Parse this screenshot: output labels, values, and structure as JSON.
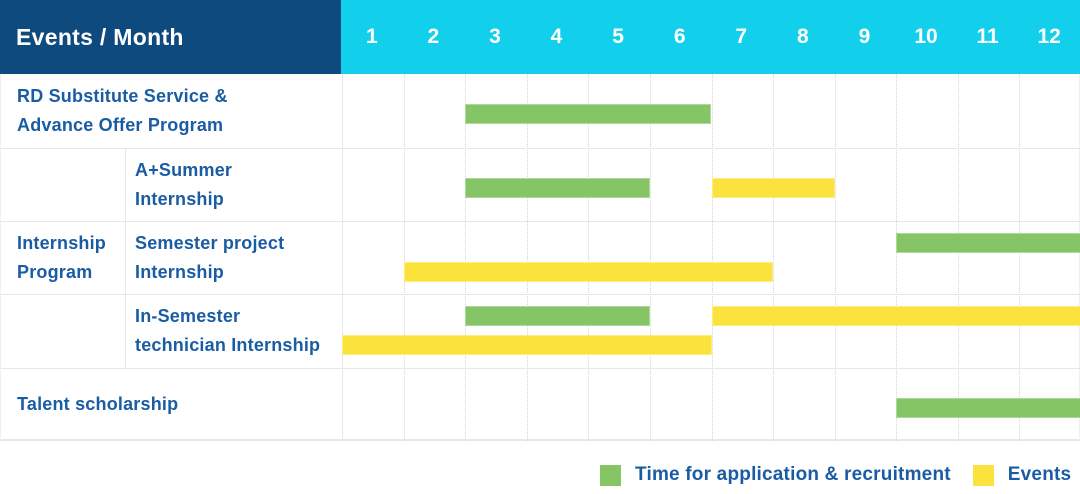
{
  "header": {
    "title": "Events / Month",
    "months": [
      "1",
      "2",
      "3",
      "4",
      "5",
      "6",
      "7",
      "8",
      "9",
      "10",
      "11",
      "12"
    ]
  },
  "colors": {
    "header_bg": "#0F4A7F",
    "months_bg": "#12CFEB",
    "header_text": "#FFFFFF",
    "green": "#85C565",
    "yellow": "#FCE23C",
    "label_text": "#1A5CA4",
    "grid_solid": "#E7E7E7",
    "grid_dotted": "#D5D5D5"
  },
  "chart_data": {
    "type": "gantt",
    "x_axis": {
      "label": "Month",
      "range": [
        1,
        12
      ],
      "ticks": [
        "1",
        "2",
        "3",
        "4",
        "5",
        "6",
        "7",
        "8",
        "9",
        "10",
        "11",
        "12"
      ]
    },
    "series": {
      "application": {
        "label": "Time for application & recruitment",
        "color_key": "green"
      },
      "events": {
        "label": "Events",
        "color_key": "yellow"
      }
    },
    "group": {
      "label_lines": [
        "Internship",
        "Program"
      ],
      "from_row": 1,
      "to_row": 3
    },
    "rows": [
      {
        "label_lines": [
          "RD Substitute Service &",
          "Advance Offer Program"
        ],
        "indent": false,
        "bars": [
          {
            "series": "application",
            "start_month": 3,
            "end_month": 6,
            "lane": "mid"
          }
        ]
      },
      {
        "label_lines": [
          "A+Summer",
          "Internship"
        ],
        "indent": true,
        "bars": [
          {
            "series": "application",
            "start_month": 3,
            "end_month": 5,
            "lane": "mid"
          },
          {
            "series": "events",
            "start_month": 7,
            "end_month": 8,
            "lane": "mid"
          }
        ]
      },
      {
        "label_lines": [
          "Semester project",
          "Internship"
        ],
        "indent": true,
        "bars": [
          {
            "series": "application",
            "start_month": 10,
            "end_month": 12,
            "lane": "top"
          },
          {
            "series": "events",
            "start_month": 2,
            "end_month": 7,
            "lane": "bottom"
          }
        ]
      },
      {
        "label_lines": [
          "In-Semester",
          "technician Internship"
        ],
        "indent": true,
        "bars": [
          {
            "series": "application",
            "start_month": 3,
            "end_month": 5,
            "lane": "top"
          },
          {
            "series": "events",
            "start_month": 7,
            "end_month": 12,
            "lane": "top"
          },
          {
            "series": "events",
            "start_month": 1,
            "end_month": 6,
            "lane": "bottom"
          }
        ]
      },
      {
        "label_lines": [
          "Talent scholarship"
        ],
        "indent": false,
        "bars": [
          {
            "series": "application",
            "start_month": 10,
            "end_month": 12,
            "lane": "mid"
          }
        ]
      }
    ]
  },
  "legend": {
    "items": [
      "application",
      "events"
    ]
  }
}
